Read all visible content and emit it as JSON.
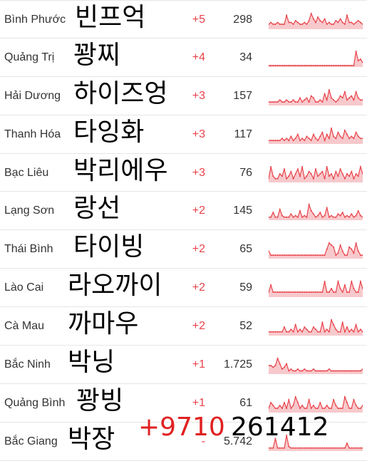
{
  "rows": [
    {
      "name": "Bình Phước",
      "korean": "빈프억",
      "kr_left": 105,
      "delta": "+5",
      "total": "298",
      "spark": [
        2,
        3,
        2,
        2,
        3,
        2,
        2,
        2,
        7,
        3,
        3,
        2,
        4,
        3,
        2,
        2,
        3,
        2,
        4,
        8,
        5,
        3,
        6,
        4,
        3,
        5,
        2,
        3,
        2,
        2,
        4,
        3,
        5,
        3,
        2,
        7,
        3,
        3,
        2,
        3,
        4,
        3,
        2
      ]
    },
    {
      "name": "Quảng Trị",
      "korean": "꽝찌",
      "kr_left": 103,
      "delta": "+4",
      "total": "34",
      "spark": [
        0,
        0,
        0,
        0,
        0,
        0,
        0,
        0,
        0,
        0,
        0,
        0,
        0,
        0,
        0,
        0,
        0,
        0,
        0,
        0,
        0,
        0,
        0,
        0,
        0,
        0,
        0,
        0,
        0,
        0,
        0,
        0,
        0,
        0,
        0,
        0,
        0,
        0,
        0,
        9,
        3,
        4,
        2
      ]
    },
    {
      "name": "Hải Dương",
      "korean": "하이즈엉",
      "kr_left": 103,
      "delta": "+3",
      "total": "157",
      "spark": [
        1,
        1,
        1,
        1,
        1,
        2,
        1,
        1,
        2,
        1,
        1,
        2,
        1,
        1,
        3,
        1,
        2,
        3,
        1,
        4,
        3,
        1,
        1,
        2,
        1,
        5,
        2,
        7,
        3,
        2,
        1,
        2,
        4,
        3,
        6,
        2,
        3,
        4,
        2,
        6,
        3,
        2,
        2
      ]
    },
    {
      "name": "Thanh Hóa",
      "korean": "타잉화",
      "kr_left": 103,
      "delta": "+3",
      "total": "117",
      "spark": [
        1,
        1,
        1,
        1,
        1,
        1,
        2,
        1,
        2,
        1,
        3,
        1,
        2,
        4,
        1,
        2,
        1,
        3,
        2,
        1,
        4,
        2,
        1,
        3,
        5,
        1,
        4,
        2,
        7,
        3,
        2,
        5,
        3,
        2,
        6,
        4,
        2,
        3,
        2,
        5,
        3,
        2,
        2
      ]
    },
    {
      "name": "Bạc Liêu",
      "korean": "박리에우",
      "kr_left": 103,
      "delta": "+3",
      "total": "76",
      "spark": [
        1,
        6,
        2,
        1,
        1,
        3,
        2,
        5,
        1,
        2,
        4,
        1,
        3,
        5,
        2,
        6,
        1,
        2,
        4,
        3,
        1,
        5,
        2,
        3,
        4,
        1,
        6,
        2,
        3,
        1,
        4,
        2,
        5,
        3,
        1,
        3,
        2,
        4,
        1,
        3,
        2,
        6,
        3
      ]
    },
    {
      "name": "Lạng Sơn",
      "korean": "랑선",
      "kr_left": 103,
      "delta": "+2",
      "total": "145",
      "spark": [
        1,
        1,
        4,
        1,
        1,
        6,
        2,
        1,
        1,
        1,
        3,
        1,
        2,
        1,
        5,
        1,
        2,
        1,
        9,
        5,
        3,
        1,
        2,
        4,
        1,
        2,
        7,
        1,
        2,
        1,
        1,
        3,
        2,
        4,
        1,
        2,
        1,
        3,
        1,
        2,
        5,
        2,
        1
      ]
    },
    {
      "name": "Thái Bình",
      "korean": "타이빙",
      "kr_left": 103,
      "delta": "+2",
      "total": "65",
      "spark": [
        3,
        1,
        1,
        1,
        1,
        1,
        1,
        1,
        1,
        1,
        1,
        1,
        1,
        1,
        1,
        1,
        1,
        1,
        1,
        1,
        1,
        1,
        1,
        1,
        1,
        1,
        4,
        7,
        6,
        5,
        1,
        2,
        6,
        3,
        1,
        1,
        5,
        4,
        2,
        7,
        3,
        1,
        1
      ]
    },
    {
      "name": "Lào Cai",
      "korean": "라오까이",
      "kr_left": 95,
      "delta": "+2",
      "total": "59",
      "spark": [
        1,
        3,
        1,
        1,
        1,
        1,
        1,
        1,
        1,
        1,
        1,
        1,
        1,
        1,
        1,
        1,
        1,
        1,
        1,
        1,
        1,
        1,
        1,
        1,
        1,
        4,
        1,
        1,
        2,
        1,
        1,
        4,
        2,
        1,
        3,
        1,
        1,
        4,
        2,
        1,
        1,
        4,
        2
      ]
    },
    {
      "name": "Cà Mau",
      "korean": "까마우",
      "kr_left": 95,
      "delta": "+2",
      "total": "52",
      "spark": [
        1,
        1,
        1,
        1,
        1,
        1,
        1,
        3,
        1,
        1,
        2,
        1,
        4,
        1,
        2,
        1,
        3,
        2,
        1,
        1,
        3,
        2,
        1,
        1,
        5,
        1,
        2,
        1,
        6,
        4,
        2,
        1,
        1,
        5,
        1,
        3,
        1,
        2,
        1,
        4,
        1,
        2,
        1
      ]
    },
    {
      "name": "Bắc Ninh",
      "korean": "박닝",
      "kr_left": 95,
      "delta": "+1",
      "total": "1.725",
      "spark": [
        4,
        4,
        3,
        4,
        8,
        5,
        2,
        3,
        5,
        1,
        2,
        1,
        1,
        2,
        1,
        1,
        2,
        1,
        1,
        1,
        2,
        1,
        1,
        1,
        1,
        1,
        1,
        2,
        1,
        1,
        1,
        1,
        1,
        1,
        1,
        1,
        1,
        1,
        1,
        1,
        1,
        1,
        2
      ]
    },
    {
      "name": "Quảng Bình",
      "korean": "꽝빙",
      "kr_left": 107,
      "delta": "+1",
      "total": "61",
      "spark": [
        1,
        3,
        2,
        1,
        1,
        2,
        1,
        3,
        1,
        4,
        1,
        2,
        5,
        3,
        1,
        2,
        1,
        1,
        4,
        1,
        2,
        1,
        1,
        3,
        1,
        1,
        2,
        1,
        1,
        4,
        2,
        1,
        1,
        1,
        5,
        3,
        1,
        1,
        4,
        2,
        1,
        1,
        2
      ]
    },
    {
      "name": "Bắc Giang",
      "korean": "박장",
      "kr_left": 95,
      "delta": "-",
      "total": "5.742",
      "spark": [
        1,
        1,
        1,
        7,
        1,
        1,
        1,
        1,
        9,
        2,
        1,
        1,
        1,
        1,
        1,
        1,
        1,
        1,
        1,
        1,
        1,
        1,
        1,
        1,
        1,
        1,
        1,
        1,
        1,
        1,
        1,
        1,
        1,
        1,
        1,
        4,
        1,
        1,
        1,
        1,
        1,
        1,
        1
      ]
    }
  ],
  "overlay": {
    "red_text": "+9710",
    "black_text": "261412"
  },
  "colors": {
    "delta": "#e8434a",
    "spark_line": "#e8434a",
    "spark_fill": "#f7c9cc"
  }
}
